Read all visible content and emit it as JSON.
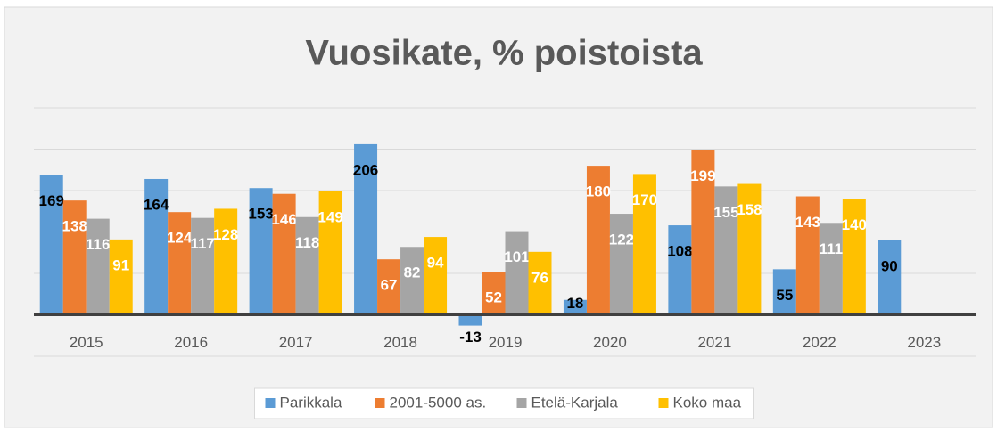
{
  "chart_data": {
    "type": "bar",
    "title": "Vuosikate, % poistoista",
    "categories": [
      "2015",
      "2016",
      "2017",
      "2018",
      "2019",
      "2020",
      "2021",
      "2022",
      "2023"
    ],
    "series": [
      {
        "name": "Parikkala",
        "color": "#5b9bd5",
        "values": [
          169,
          164,
          153,
          206,
          -13,
          18,
          108,
          55,
          90
        ]
      },
      {
        "name": "2001-5000 as.",
        "color": "#ed7d31",
        "values": [
          138,
          124,
          146,
          67,
          52,
          180,
          199,
          143,
          null
        ]
      },
      {
        "name": "Etelä-Karjala",
        "color": "#a5a5a5",
        "values": [
          116,
          117,
          118,
          82,
          101,
          122,
          155,
          111,
          null
        ]
      },
      {
        "name": "Koko maa",
        "color": "#ffc000",
        "values": [
          91,
          128,
          149,
          94,
          76,
          170,
          158,
          140,
          null
        ]
      }
    ],
    "ylim": [
      -50,
      250
    ],
    "yticks": [
      -50,
      0,
      50,
      100,
      150,
      200,
      250
    ],
    "grid": true,
    "legend": "bottom"
  }
}
